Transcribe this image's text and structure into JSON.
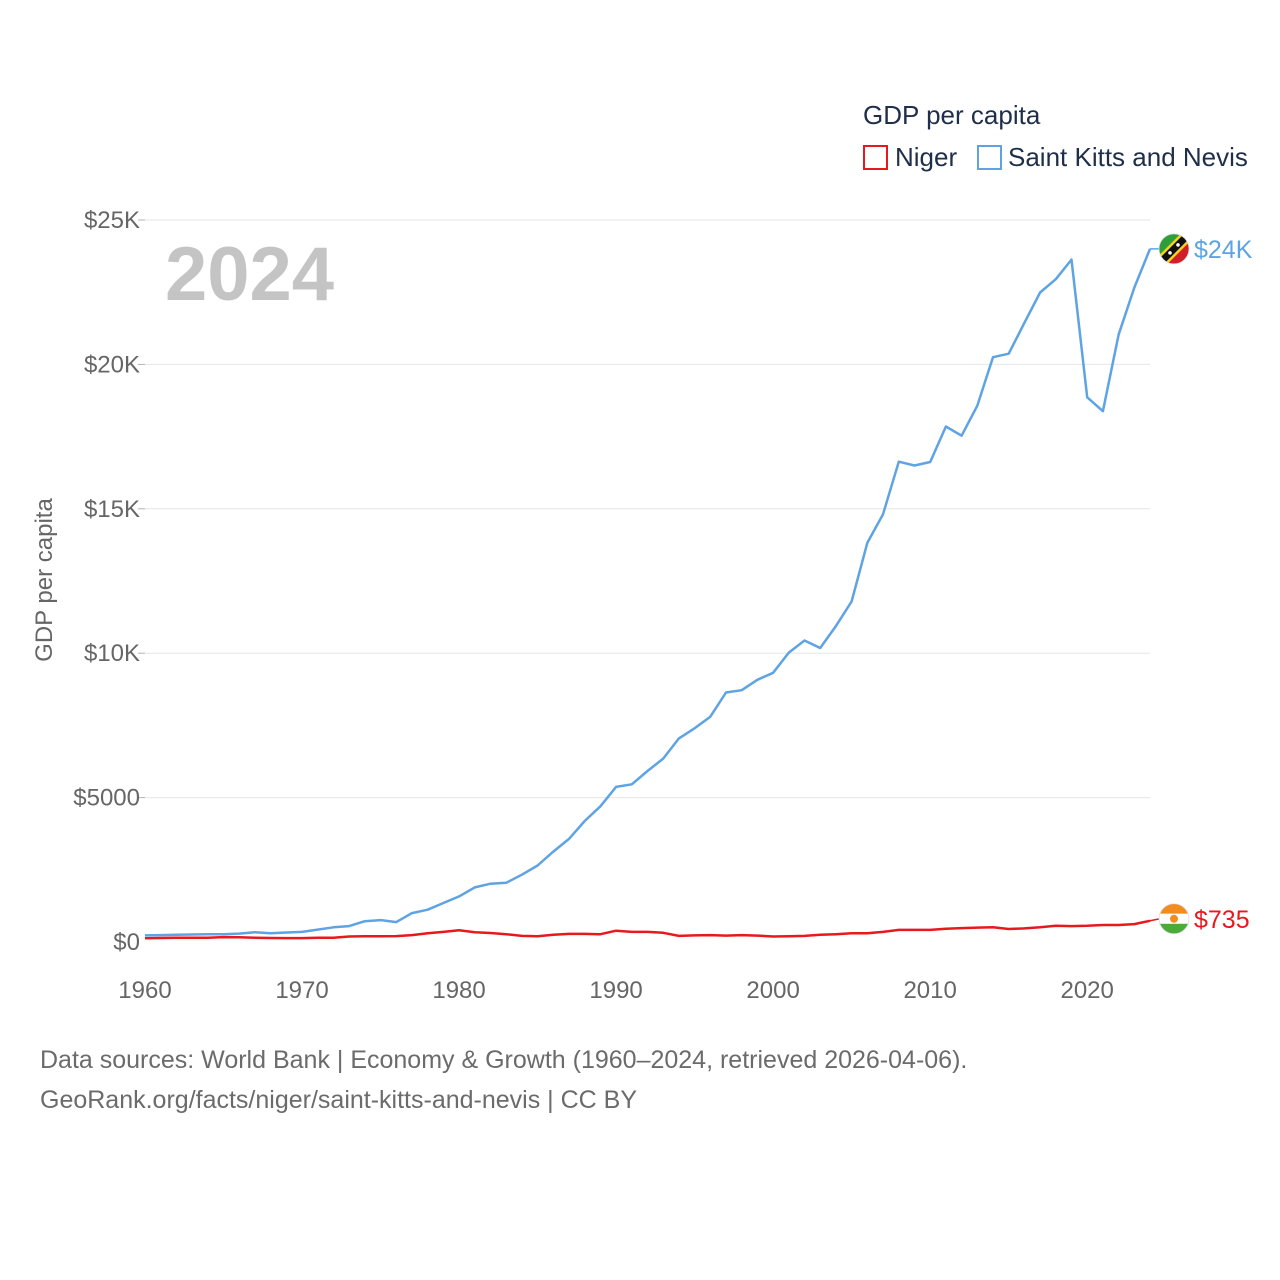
{
  "chart_data": {
    "type": "line",
    "title": "GDP per capita",
    "ylabel": "GDP per capita",
    "xlabel": "",
    "year_label": "2024",
    "xlim": [
      1960,
      2024
    ],
    "ylim": [
      0,
      25000
    ],
    "y_ticks": [
      {
        "value": 0,
        "label": "$0"
      },
      {
        "value": 5000,
        "label": "$5000"
      },
      {
        "value": 10000,
        "label": "$10K"
      },
      {
        "value": 15000,
        "label": "$15K"
      },
      {
        "value": 20000,
        "label": "$20K"
      },
      {
        "value": 25000,
        "label": "$25K"
      }
    ],
    "x_ticks": [
      {
        "value": 1960,
        "label": "1960"
      },
      {
        "value": 1970,
        "label": "1970"
      },
      {
        "value": 1980,
        "label": "1980"
      },
      {
        "value": 1990,
        "label": "1990"
      },
      {
        "value": 2000,
        "label": "2000"
      },
      {
        "value": 2010,
        "label": "2010"
      },
      {
        "value": 2020,
        "label": "2020"
      }
    ],
    "legend_position": "top-right",
    "series": [
      {
        "name": "Niger",
        "color": "#e8191d",
        "flag": "niger-flag-icon",
        "end_label": "$735",
        "x": [
          1960,
          1961,
          1962,
          1963,
          1964,
          1965,
          1966,
          1967,
          1968,
          1969,
          1970,
          1971,
          1972,
          1973,
          1974,
          1975,
          1976,
          1977,
          1978,
          1979,
          1980,
          1981,
          1982,
          1983,
          1984,
          1985,
          1986,
          1987,
          1988,
          1989,
          1990,
          1991,
          1992,
          1993,
          1994,
          1995,
          1996,
          1997,
          1998,
          1999,
          2000,
          2001,
          2002,
          2003,
          2004,
          2005,
          2006,
          2007,
          2008,
          2009,
          2010,
          2011,
          2012,
          2013,
          2014,
          2015,
          2016,
          2017,
          2018,
          2019,
          2020,
          2021,
          2022,
          2023,
          2024
        ],
        "y": [
          130,
          140,
          145,
          150,
          145,
          170,
          165,
          150,
          140,
          135,
          135,
          145,
          150,
          190,
          200,
          200,
          205,
          240,
          300,
          350,
          410,
          340,
          310,
          270,
          210,
          200,
          250,
          280,
          280,
          270,
          390,
          350,
          350,
          320,
          210,
          230,
          240,
          220,
          240,
          220,
          190,
          200,
          210,
          250,
          270,
          300,
          300,
          350,
          420,
          420,
          420,
          460,
          480,
          500,
          510,
          450,
          470,
          510,
          560,
          550,
          560,
          590,
          590,
          620,
          735
        ]
      },
      {
        "name": "Saint Kitts and Nevis",
        "color": "#5ea3e4",
        "flag": "saint-kitts-and-nevis-flag-icon",
        "end_label": "$24K",
        "x": [
          1960,
          1961,
          1962,
          1963,
          1964,
          1965,
          1966,
          1967,
          1968,
          1969,
          1970,
          1971,
          1972,
          1973,
          1974,
          1975,
          1976,
          1977,
          1978,
          1979,
          1980,
          1981,
          1982,
          1983,
          1984,
          1985,
          1986,
          1987,
          1988,
          1989,
          1990,
          1991,
          1992,
          1993,
          1994,
          1995,
          1996,
          1997,
          1998,
          1999,
          2000,
          2001,
          2002,
          2003,
          2004,
          2005,
          2006,
          2007,
          2008,
          2009,
          2010,
          2011,
          2012,
          2013,
          2014,
          2015,
          2016,
          2017,
          2018,
          2019,
          2020,
          2021,
          2022,
          2023,
          2024
        ],
        "y": [
          230,
          240,
          250,
          260,
          270,
          270,
          290,
          340,
          300,
          330,
          350,
          430,
          510,
          550,
          720,
          760,
          690,
          1000,
          1120,
          1350,
          1580,
          1890,
          2020,
          2050,
          2330,
          2650,
          3130,
          3570,
          4190,
          4700,
          5370,
          5460,
          5920,
          6350,
          7050,
          7400,
          7800,
          8640,
          8720,
          9080,
          9320,
          10020,
          10440,
          10180,
          10940,
          11790,
          13820,
          14810,
          16630,
          16500,
          16620,
          17850,
          17530,
          18570,
          20250,
          20370,
          21440,
          22490,
          22950,
          23630,
          18860,
          18380,
          21030,
          22660,
          24000
        ]
      }
    ]
  },
  "footer": {
    "line1": "Data sources: World Bank | Economy & Growth (1960–2024, retrieved 2026-04-06).",
    "line2": "GeoRank.org/facts/niger/saint-kitts-and-nevis | CC BY"
  }
}
